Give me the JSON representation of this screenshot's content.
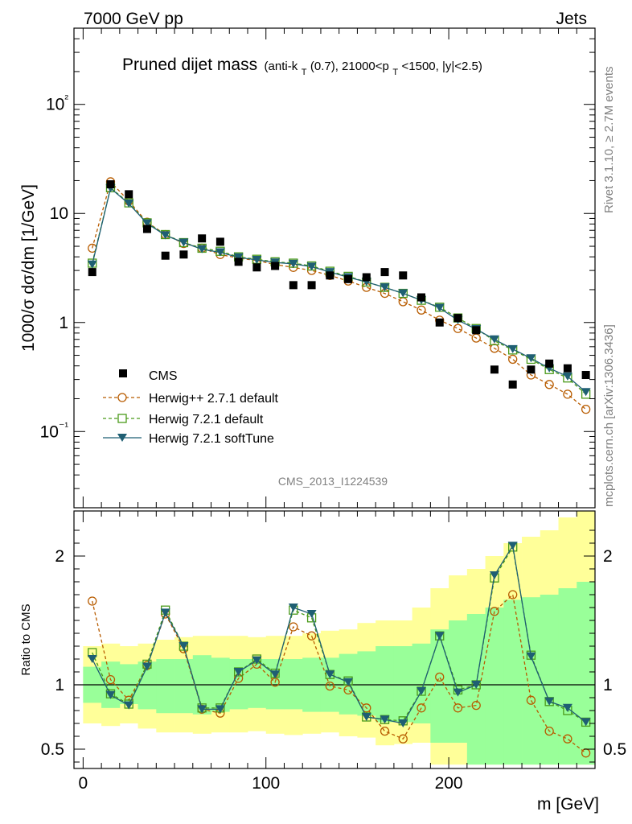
{
  "header": {
    "left": "7000 GeV pp",
    "right": "Jets"
  },
  "side_labels": {
    "rivet": "Rivet 3.1.10, ≥ 2.7M events",
    "mcplots": "mcplots.cern.ch [arXiv:1306.3436]"
  },
  "watermark": "CMS_2013_I1224539",
  "chart_data": [
    {
      "type": "scatter",
      "panel": "main",
      "title_main": "Pruned dijet mass",
      "title_details": {
        "a": "(anti-k",
        "a_sub": "T",
        "b": "(0.7), 21000<p",
        "b_sub": "T",
        "c": "<1500, |y|<2.5)"
      },
      "ylabel": "1000/σ dσ/dm [1/GeV]",
      "xlabel": "m [GeV]",
      "yscale": "log",
      "ylim": [
        0.02,
        500
      ],
      "xlim": [
        -5,
        280
      ],
      "y_tick_labels": {
        "100": "10²",
        "10": "10",
        "1": "1",
        "0.1": "10⁻¹"
      },
      "x": [
        5,
        15,
        25,
        35,
        45,
        55,
        65,
        75,
        85,
        95,
        105,
        115,
        125,
        135,
        145,
        155,
        165,
        175,
        185,
        195,
        205,
        215,
        225,
        235,
        245,
        255,
        265,
        275
      ],
      "series": [
        {
          "name": "CMS",
          "color": "#000000",
          "marker": "square-filled",
          "values": [
            2.9,
            18.5,
            15.0,
            7.2,
            4.1,
            4.2,
            5.9,
            5.5,
            3.6,
            3.2,
            3.3,
            2.2,
            2.2,
            2.7,
            2.5,
            2.6,
            2.9,
            2.7,
            1.7,
            1.0,
            1.1,
            0.85,
            0.37,
            0.27,
            0.37,
            0.42,
            0.38,
            0.33
          ]
        },
        {
          "name": "Herwig++ 2.7.1 default",
          "color": "#b85c00",
          "marker": "circle-open",
          "dash": true,
          "values": [
            4.8,
            19.5,
            13.0,
            8.3,
            6.4,
            5.3,
            4.8,
            4.2,
            3.9,
            3.7,
            3.4,
            3.2,
            3.0,
            2.7,
            2.4,
            2.1,
            1.85,
            1.55,
            1.3,
            1.05,
            0.88,
            0.72,
            0.58,
            0.46,
            0.33,
            0.27,
            0.22,
            0.16
          ]
        },
        {
          "name": "Herwig 7.2.1 default",
          "color": "#4a9a1a",
          "marker": "square-open",
          "dash": true,
          "values": [
            3.5,
            17.2,
            12.5,
            8.2,
            6.4,
            5.4,
            4.8,
            4.5,
            4.0,
            3.8,
            3.6,
            3.5,
            3.3,
            2.95,
            2.65,
            2.35,
            2.1,
            1.85,
            1.6,
            1.38,
            1.1,
            0.88,
            0.68,
            0.56,
            0.46,
            0.37,
            0.31,
            0.22
          ]
        },
        {
          "name": "Herwig 7.2.1 softTune",
          "color": "#1f5f73",
          "marker": "triangle-down-filled",
          "values": [
            3.4,
            17.0,
            12.3,
            8.1,
            6.3,
            5.4,
            4.7,
            4.4,
            3.95,
            3.75,
            3.55,
            3.45,
            3.25,
            2.9,
            2.6,
            2.35,
            2.1,
            1.85,
            1.6,
            1.36,
            1.05,
            0.87,
            0.7,
            0.57,
            0.47,
            0.38,
            0.32,
            0.23
          ]
        }
      ]
    },
    {
      "type": "line",
      "panel": "ratio",
      "ylabel": "Ratio to CMS",
      "xlabel": "m [GeV]",
      "ylim": [
        0.35,
        2.35
      ],
      "xlim": [
        -5,
        280
      ],
      "y_tick_labels": [
        "0.5",
        "1",
        "2"
      ],
      "x_tick_labels": [
        "0",
        "100",
        "200"
      ],
      "reference": 1,
      "x": [
        5,
        15,
        25,
        35,
        45,
        55,
        65,
        75,
        85,
        95,
        105,
        115,
        125,
        135,
        145,
        155,
        165,
        175,
        185,
        195,
        205,
        215,
        225,
        235,
        245,
        255,
        265,
        275
      ],
      "bands": {
        "inner_color": "#99ff99",
        "outer_color": "#ffff99",
        "inner_lo": [
          0.86,
          0.82,
          0.85,
          0.81,
          0.78,
          0.78,
          0.77,
          0.79,
          0.81,
          0.82,
          0.81,
          0.81,
          0.79,
          0.79,
          0.77,
          0.76,
          0.71,
          0.71,
          0.7,
          0.55,
          0.55,
          0.38,
          0.38,
          0.38,
          0.38,
          0.38,
          0.38,
          0.38
        ],
        "inner_hi": [
          1.14,
          1.18,
          1.16,
          1.18,
          1.2,
          1.2,
          1.23,
          1.21,
          1.2,
          1.2,
          1.2,
          1.2,
          1.21,
          1.21,
          1.24,
          1.26,
          1.3,
          1.3,
          1.32,
          1.43,
          1.5,
          1.55,
          1.6,
          1.66,
          1.68,
          1.7,
          1.75,
          1.8
        ],
        "outer_lo": [
          0.7,
          0.68,
          0.7,
          0.66,
          0.63,
          0.63,
          0.62,
          0.63,
          0.63,
          0.64,
          0.62,
          0.61,
          0.62,
          0.63,
          0.6,
          0.59,
          0.53,
          0.54,
          0.55,
          0.38,
          0.38,
          0.38,
          0.38,
          0.38,
          0.38,
          0.38,
          0.38,
          0.38
        ],
        "outer_hi": [
          1.3,
          1.32,
          1.3,
          1.32,
          1.35,
          1.37,
          1.38,
          1.38,
          1.38,
          1.37,
          1.38,
          1.38,
          1.4,
          1.42,
          1.43,
          1.48,
          1.5,
          1.5,
          1.6,
          1.75,
          1.85,
          1.9,
          2.0,
          2.1,
          2.15,
          2.2,
          2.3,
          2.35
        ]
      },
      "series": [
        {
          "name": "Herwig++ 2.7.1 default",
          "color": "#b85c00",
          "marker": "circle-open",
          "dash": true,
          "values": [
            1.65,
            1.04,
            0.88,
            1.15,
            1.55,
            1.28,
            0.81,
            0.78,
            1.05,
            1.16,
            1.02,
            1.45,
            1.38,
            0.99,
            0.96,
            0.82,
            0.64,
            0.58,
            0.82,
            1.06,
            0.82,
            0.84,
            1.57,
            1.7,
            0.88,
            0.64,
            0.58,
            0.47
          ]
        },
        {
          "name": "Herwig 7.2.1 default",
          "color": "#4a9a1a",
          "marker": "square-open",
          "dash": true,
          "values": [
            1.25,
            0.93,
            0.85,
            1.16,
            1.58,
            1.3,
            0.82,
            0.82,
            1.1,
            1.2,
            1.09,
            1.58,
            1.52,
            1.08,
            1.03,
            0.75,
            0.73,
            0.72,
            0.95,
            1.38,
            0.96,
            1.0,
            1.83,
            2.07,
            1.23,
            0.87,
            0.8,
            0.71
          ]
        },
        {
          "name": "Herwig 7.2.1 softTune",
          "color": "#1f5f73",
          "marker": "triangle-down-filled",
          "values": [
            1.2,
            0.92,
            0.84,
            1.14,
            1.56,
            1.3,
            0.81,
            0.81,
            1.1,
            1.19,
            1.08,
            1.6,
            1.55,
            1.08,
            1.02,
            0.75,
            0.73,
            0.7,
            0.95,
            1.38,
            0.94,
            1.0,
            1.85,
            2.08,
            1.22,
            0.87,
            0.82,
            0.71
          ]
        }
      ]
    }
  ]
}
